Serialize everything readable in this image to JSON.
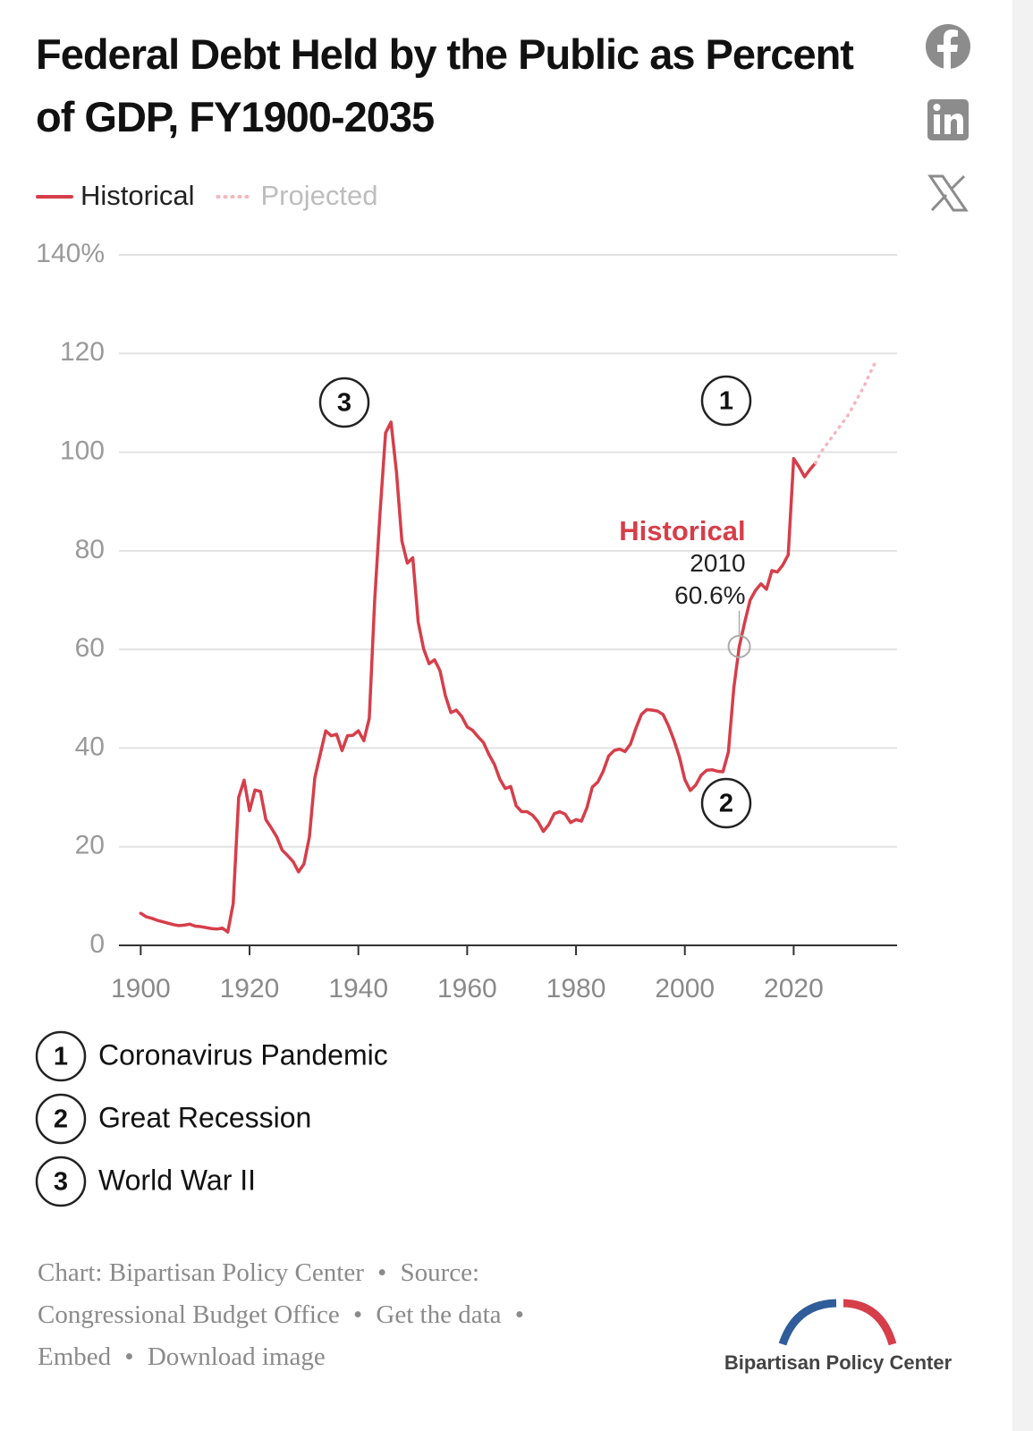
{
  "chart_data": {
    "type": "line",
    "title": "Federal Debt Held by the Public as Percent of GDP, FY1900-2035",
    "series": [
      {
        "name": "Historical",
        "color": "#d63e4a",
        "style": "solid",
        "x": [
          1900,
          1901,
          1902,
          1903,
          1904,
          1905,
          1906,
          1907,
          1908,
          1909,
          1910,
          1911,
          1912,
          1913,
          1914,
          1915,
          1916,
          1917,
          1918,
          1919,
          1920,
          1921,
          1922,
          1923,
          1924,
          1925,
          1926,
          1927,
          1928,
          1929,
          1930,
          1931,
          1932,
          1933,
          1934,
          1935,
          1936,
          1937,
          1938,
          1939,
          1940,
          1941,
          1942,
          1943,
          1944,
          1945,
          1946,
          1947,
          1948,
          1949,
          1950,
          1951,
          1952,
          1953,
          1954,
          1955,
          1956,
          1957,
          1958,
          1959,
          1960,
          1961,
          1962,
          1963,
          1964,
          1965,
          1966,
          1967,
          1968,
          1969,
          1970,
          1971,
          1972,
          1973,
          1974,
          1975,
          1976,
          1977,
          1978,
          1979,
          1980,
          1981,
          1982,
          1983,
          1984,
          1985,
          1986,
          1987,
          1988,
          1989,
          1990,
          1991,
          1992,
          1993,
          1994,
          1995,
          1996,
          1997,
          1998,
          1999,
          2000,
          2001,
          2002,
          2003,
          2004,
          2005,
          2006,
          2007,
          2008,
          2009,
          2010,
          2011,
          2012,
          2013,
          2014,
          2015,
          2016,
          2017,
          2018,
          2019,
          2020,
          2021,
          2022,
          2023,
          2024
        ],
        "values": [
          6.5,
          5.8,
          5.5,
          5.1,
          4.8,
          4.5,
          4.2,
          4.0,
          4.1,
          4.3,
          3.9,
          3.8,
          3.6,
          3.4,
          3.3,
          3.5,
          2.7,
          8.5,
          30.0,
          33.5,
          27.3,
          31.5,
          31.2,
          25.5,
          23.8,
          22.0,
          19.3,
          18.2,
          17.0,
          14.9,
          16.5,
          22.0,
          34.0,
          38.8,
          43.5,
          42.5,
          42.8,
          39.5,
          42.5,
          42.6,
          43.5,
          41.5,
          46.0,
          70.0,
          88.0,
          103.9,
          106.1,
          96.0,
          82.0,
          77.5,
          78.6,
          65.5,
          60.1,
          57.1,
          57.9,
          55.7,
          50.6,
          47.2,
          47.7,
          46.4,
          44.3,
          43.6,
          42.3,
          41.1,
          38.7,
          36.7,
          33.7,
          31.8,
          32.2,
          28.3,
          27.1,
          27.1,
          26.4,
          25.1,
          23.1,
          24.5,
          26.7,
          27.1,
          26.6,
          24.9,
          25.5,
          25.2,
          27.9,
          32.1,
          33.1,
          35.3,
          38.4,
          39.5,
          39.8,
          39.3,
          40.8,
          44.0,
          46.8,
          47.8,
          47.7,
          47.5,
          46.8,
          44.5,
          41.6,
          38.2,
          33.6,
          31.4,
          32.5,
          34.5,
          35.5,
          35.6,
          35.3,
          35.2,
          39.2,
          52.2,
          60.6,
          65.5,
          70.0,
          72.0,
          73.3,
          72.2,
          76.0,
          75.7,
          77.1,
          79.2,
          98.7,
          97.0,
          95.0,
          96.5,
          97.8
        ]
      },
      {
        "name": "Projected",
        "color": "#f4b6bd",
        "style": "dotted",
        "x": [
          2024,
          2025,
          2026,
          2027,
          2028,
          2029,
          2030,
          2031,
          2032,
          2033,
          2034,
          2035
        ],
        "values": [
          97.8,
          100.0,
          101.5,
          103.0,
          104.5,
          106.0,
          107.5,
          109.5,
          111.5,
          113.5,
          116.0,
          118.2
        ]
      }
    ],
    "xlim": [
      1896,
      2039
    ],
    "ylim": [
      0,
      140
    ],
    "xticks": [
      1900,
      1920,
      1940,
      1960,
      1980,
      2000,
      2020
    ],
    "yticks": [
      0,
      20,
      40,
      60,
      80,
      100,
      120,
      {
        "value": 140,
        "label": "140%"
      }
    ],
    "grid": true,
    "annotation": {
      "label": "Historical",
      "x": 2010,
      "value": 60.6,
      "value_label": "60.6%"
    },
    "notes": [
      {
        "number": 1,
        "label": "Coronavirus Pandemic"
      },
      {
        "number": 2,
        "label": "Great Recession"
      },
      {
        "number": 3,
        "label": "World War II"
      }
    ],
    "footer": {
      "items": [
        "Chart: Bipartisan Policy Center",
        "Source: Congressional Budget Office",
        "Get the data",
        "Embed",
        "Download image"
      ],
      "separator": "•"
    },
    "logo": "Bipartisan Policy Center"
  }
}
